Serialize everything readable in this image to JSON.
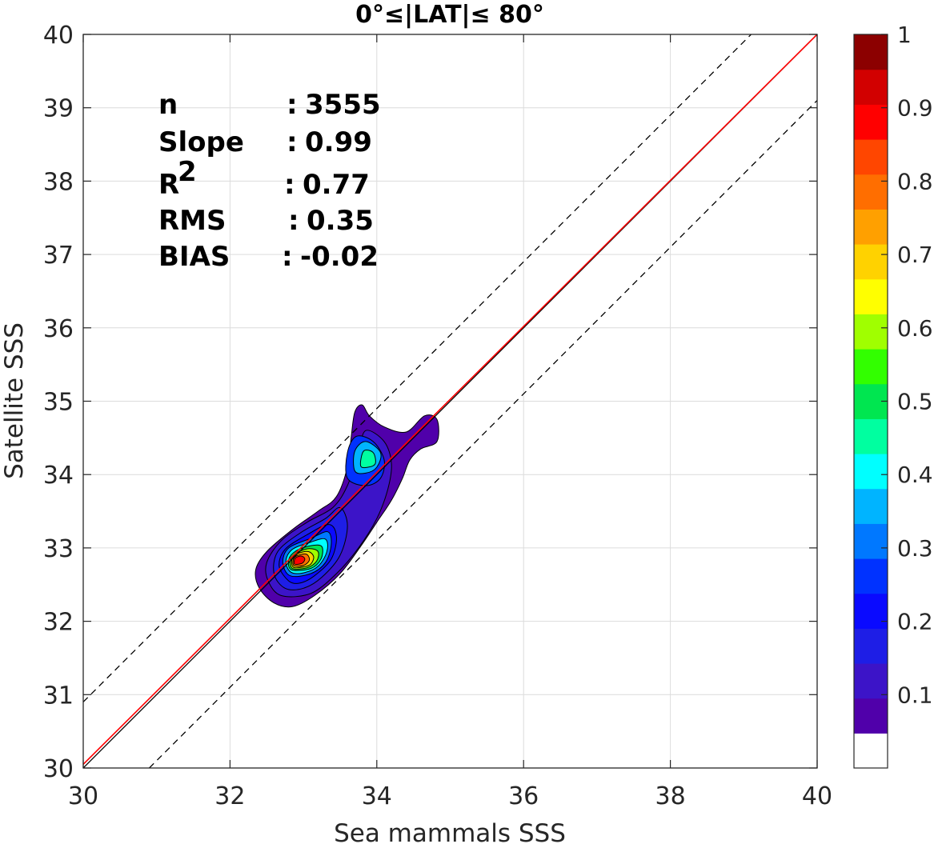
{
  "chart_data": {
    "type": "contour",
    "title": "0°≤|LAT|≤ 80°",
    "xlabel": "Sea mammals  SSS",
    "ylabel": "Satellite SSS",
    "xlim": [
      30,
      40
    ],
    "ylim": [
      30,
      40
    ],
    "xticks": [
      "30",
      "32",
      "34",
      "36",
      "38",
      "40"
    ],
    "yticks": [
      "30",
      "31",
      "32",
      "33",
      "34",
      "35",
      "36",
      "37",
      "38",
      "39",
      "40"
    ],
    "grid": true,
    "stats": [
      {
        "label": "n",
        "sep": ":",
        "value": "3555"
      },
      {
        "label": "Slope",
        "sep": ":",
        "value": "0.99"
      },
      {
        "label": "R",
        "sup": "2",
        "sep": ":",
        "value": "0.77"
      },
      {
        "label": "RMS",
        "sep": ":",
        "value": "0.35"
      },
      {
        "label": "BIAS",
        "sep": ":",
        "value": "-0.02"
      }
    ],
    "lines": {
      "one_to_one": {
        "x": [
          30,
          40
        ],
        "y": [
          30,
          40
        ],
        "color": "#000000"
      },
      "regression": {
        "slope": 0.99,
        "x": [
          30,
          40
        ],
        "y": [
          30.05,
          40
        ],
        "color": "#ff0000"
      },
      "offset_upper": {
        "x": [
          30,
          39.1
        ],
        "y": [
          30.9,
          40
        ],
        "style": "dashed"
      },
      "offset_lower": {
        "x": [
          30.9,
          40
        ],
        "y": [
          30,
          39.1
        ],
        "style": "dashed"
      }
    },
    "contours": [
      {
        "level": 0.05,
        "points": [
          [
            32.6,
            32.25
          ],
          [
            32.4,
            32.45
          ],
          [
            32.35,
            32.7
          ],
          [
            32.5,
            32.95
          ],
          [
            32.85,
            33.25
          ],
          [
            33.2,
            33.5
          ],
          [
            33.45,
            33.7
          ],
          [
            33.6,
            34.1
          ],
          [
            33.65,
            34.5
          ],
          [
            33.7,
            34.85
          ],
          [
            33.8,
            34.95
          ],
          [
            33.9,
            34.8
          ],
          [
            34.1,
            34.65
          ],
          [
            34.4,
            34.58
          ],
          [
            34.65,
            34.8
          ],
          [
            34.82,
            34.75
          ],
          [
            34.82,
            34.45
          ],
          [
            34.6,
            34.35
          ],
          [
            34.45,
            34.2
          ],
          [
            34.35,
            33.95
          ],
          [
            34.2,
            33.65
          ],
          [
            34.0,
            33.35
          ],
          [
            33.8,
            33.05
          ],
          [
            33.5,
            32.65
          ],
          [
            33.15,
            32.35
          ],
          [
            32.85,
            32.2
          ]
        ]
      },
      {
        "level": 0.1,
        "points": [
          [
            32.7,
            32.35
          ],
          [
            32.52,
            32.55
          ],
          [
            32.5,
            32.8
          ],
          [
            32.7,
            33.1
          ],
          [
            33.05,
            33.35
          ],
          [
            33.4,
            33.55
          ],
          [
            33.6,
            33.85
          ],
          [
            33.75,
            34.3
          ],
          [
            33.85,
            34.6
          ],
          [
            34.1,
            34.45
          ],
          [
            34.2,
            34.15
          ],
          [
            34.15,
            33.8
          ],
          [
            34.0,
            33.4
          ],
          [
            33.75,
            33.0
          ],
          [
            33.45,
            32.65
          ],
          [
            33.1,
            32.38
          ]
        ]
      },
      {
        "level": 0.15,
        "points": [
          [
            32.75,
            32.45
          ],
          [
            32.6,
            32.65
          ],
          [
            32.65,
            32.95
          ],
          [
            32.95,
            33.2
          ],
          [
            33.3,
            33.4
          ],
          [
            33.5,
            33.55
          ],
          [
            33.6,
            33.3
          ],
          [
            33.5,
            32.9
          ],
          [
            33.25,
            32.6
          ],
          [
            33.0,
            32.45
          ]
        ]
      },
      {
        "level": 0.2,
        "points": [
          [
            32.8,
            32.55
          ],
          [
            32.67,
            32.75
          ],
          [
            32.75,
            32.98
          ],
          [
            33.05,
            33.18
          ],
          [
            33.35,
            33.32
          ],
          [
            33.45,
            33.15
          ],
          [
            33.38,
            32.85
          ],
          [
            33.15,
            32.62
          ],
          [
            32.95,
            32.52
          ]
        ]
      },
      {
        "level": 0.25,
        "points": [
          [
            33.6,
            33.95
          ],
          [
            33.6,
            34.3
          ],
          [
            33.72,
            34.52
          ],
          [
            33.95,
            34.45
          ],
          [
            34.1,
            34.2
          ],
          [
            34.05,
            33.95
          ],
          [
            33.85,
            33.85
          ]
        ]
      },
      {
        "level": 0.35,
        "points": [
          [
            33.7,
            34.05
          ],
          [
            33.7,
            34.32
          ],
          [
            33.85,
            34.45
          ],
          [
            34.05,
            34.3
          ],
          [
            34.0,
            34.1
          ],
          [
            33.85,
            34.02
          ]
        ]
      },
      {
        "level": 0.45,
        "points": [
          [
            33.78,
            34.12
          ],
          [
            33.82,
            34.32
          ],
          [
            33.95,
            34.3
          ],
          [
            33.98,
            34.15
          ],
          [
            33.88,
            34.1
          ]
        ]
      },
      {
        "level": 0.3,
        "points": [
          [
            32.82,
            32.62
          ],
          [
            32.72,
            32.8
          ],
          [
            32.8,
            33.0
          ],
          [
            33.1,
            33.13
          ],
          [
            33.33,
            33.22
          ],
          [
            33.38,
            33.05
          ],
          [
            33.3,
            32.8
          ],
          [
            33.1,
            32.65
          ]
        ]
      },
      {
        "level": 0.4,
        "points": [
          [
            32.83,
            32.67
          ],
          [
            32.76,
            32.82
          ],
          [
            32.85,
            32.98
          ],
          [
            33.1,
            33.08
          ],
          [
            33.3,
            33.12
          ],
          [
            33.32,
            32.95
          ],
          [
            33.2,
            32.75
          ],
          [
            33.0,
            32.66
          ]
        ]
      },
      {
        "level": 0.5,
        "points": [
          [
            32.84,
            32.7
          ],
          [
            32.8,
            32.84
          ],
          [
            32.9,
            32.96
          ],
          [
            33.1,
            33.03
          ],
          [
            33.25,
            33.02
          ],
          [
            33.24,
            32.85
          ],
          [
            33.1,
            32.72
          ]
        ]
      },
      {
        "level": 0.6,
        "points": [
          [
            32.85,
            32.72
          ],
          [
            32.83,
            32.85
          ],
          [
            32.92,
            32.94
          ],
          [
            33.08,
            32.99
          ],
          [
            33.2,
            32.95
          ],
          [
            33.18,
            32.82
          ],
          [
            33.05,
            32.73
          ]
        ]
      },
      {
        "level": 0.7,
        "points": [
          [
            32.86,
            32.74
          ],
          [
            32.85,
            32.86
          ],
          [
            32.94,
            32.93
          ],
          [
            33.07,
            32.95
          ],
          [
            33.14,
            32.88
          ],
          [
            33.1,
            32.78
          ],
          [
            33.0,
            32.74
          ]
        ]
      },
      {
        "level": 0.8,
        "points": [
          [
            32.87,
            32.76
          ],
          [
            32.87,
            32.86
          ],
          [
            32.96,
            32.91
          ],
          [
            33.05,
            32.91
          ],
          [
            33.08,
            32.83
          ],
          [
            33.0,
            32.76
          ]
        ]
      },
      {
        "level": 0.9,
        "points": [
          [
            32.88,
            32.78
          ],
          [
            32.89,
            32.86
          ],
          [
            32.97,
            32.89
          ],
          [
            33.02,
            32.85
          ],
          [
            32.98,
            32.79
          ]
        ]
      }
    ],
    "colorbar": {
      "ticks": [
        "0.1",
        "0.2",
        "0.3",
        "0.4",
        "0.5",
        "0.6",
        "0.7",
        "0.8",
        "0.9",
        "1"
      ],
      "tick_values": [
        0.1,
        0.2,
        0.3,
        0.4,
        0.5,
        0.6,
        0.7,
        0.8,
        0.9,
        1.0
      ],
      "range": [
        0,
        1
      ],
      "colors": [
        "#ffffff",
        "#5000aa",
        "#3c14c8",
        "#1e1ee6",
        "#0a0aff",
        "#0032ff",
        "#0078ff",
        "#00b4ff",
        "#00ffff",
        "#00ffa0",
        "#00e650",
        "#32ff00",
        "#a0ff00",
        "#ffff00",
        "#ffd200",
        "#ffa000",
        "#ff6e00",
        "#ff4600",
        "#ff0000",
        "#d20000",
        "#8c0000"
      ]
    }
  }
}
